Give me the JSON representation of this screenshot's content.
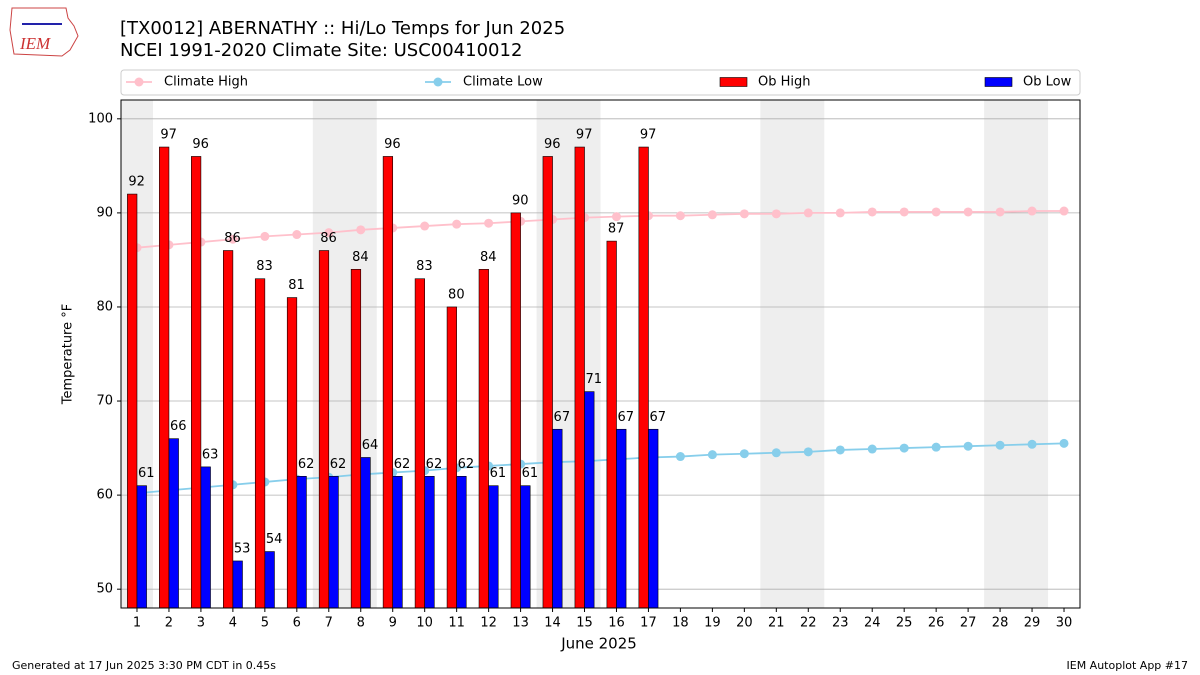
{
  "logo_text": "IEM",
  "footer_left": "Generated at 17 Jun 2025 3:30 PM CDT in 0.45s",
  "footer_right": "IEM Autoplot App #17",
  "chart_data": {
    "type": "bar",
    "title": "[TX0012] ABERNATHY :: Hi/Lo Temps for Jun 2025",
    "subtitle": "NCEI 1991-2020 Climate Site: USC00410012",
    "xlabel": "June 2025",
    "ylabel": "Temperature °F",
    "x": [
      1,
      2,
      3,
      4,
      5,
      6,
      7,
      8,
      9,
      10,
      11,
      12,
      13,
      14,
      15,
      16,
      17,
      18,
      19,
      20,
      21,
      22,
      23,
      24,
      25,
      26,
      27,
      28,
      29,
      30
    ],
    "xlim": [
      0.5,
      30.5
    ],
    "xticks": [
      1,
      2,
      3,
      4,
      5,
      6,
      7,
      8,
      9,
      10,
      11,
      12,
      13,
      14,
      15,
      16,
      17,
      18,
      19,
      20,
      21,
      22,
      23,
      24,
      25,
      26,
      27,
      28,
      29,
      30
    ],
    "ylim": [
      48,
      102
    ],
    "yticks": [
      50,
      60,
      70,
      80,
      90,
      100
    ],
    "grid": true,
    "shaded_ranges": [
      [
        0.5,
        1.5
      ],
      [
        6.5,
        8.5
      ],
      [
        13.5,
        15.5
      ],
      [
        20.5,
        22.5
      ],
      [
        27.5,
        29.5
      ]
    ],
    "series": [
      {
        "name": "Climate High",
        "type": "line",
        "color": "#ffc0cb",
        "values": [
          86.3,
          86.6,
          86.9,
          87.2,
          87.5,
          87.7,
          87.9,
          88.2,
          88.4,
          88.6,
          88.8,
          88.9,
          89.1,
          89.3,
          89.5,
          89.6,
          89.7,
          89.7,
          89.8,
          89.9,
          89.9,
          90.0,
          90.0,
          90.1,
          90.1,
          90.1,
          90.1,
          90.1,
          90.2,
          90.2
        ]
      },
      {
        "name": "Climate Low",
        "type": "line",
        "color": "#87ceeb",
        "values": [
          60.2,
          60.5,
          60.8,
          61.1,
          61.4,
          61.7,
          61.9,
          62.2,
          62.4,
          62.6,
          62.9,
          63.1,
          63.3,
          63.5,
          63.6,
          63.8,
          64.0,
          64.1,
          64.3,
          64.4,
          64.5,
          64.6,
          64.8,
          64.9,
          65.0,
          65.1,
          65.2,
          65.3,
          65.4,
          65.5
        ]
      },
      {
        "name": "Ob High",
        "type": "bar",
        "color": "#ff0000",
        "values": [
          92,
          97,
          96,
          86,
          83,
          81,
          86,
          84,
          96,
          83,
          80,
          84,
          90,
          96,
          97,
          87,
          97,
          null,
          null,
          null,
          null,
          null,
          null,
          null,
          null,
          null,
          null,
          null,
          null,
          null
        ]
      },
      {
        "name": "Ob Low",
        "type": "bar",
        "color": "#0000ff",
        "values": [
          61,
          66,
          63,
          53,
          54,
          62,
          62,
          64,
          62,
          62,
          62,
          61,
          61,
          67,
          71,
          67,
          67,
          null,
          null,
          null,
          null,
          null,
          null,
          null,
          null,
          null,
          null,
          null,
          null,
          null
        ]
      }
    ]
  }
}
